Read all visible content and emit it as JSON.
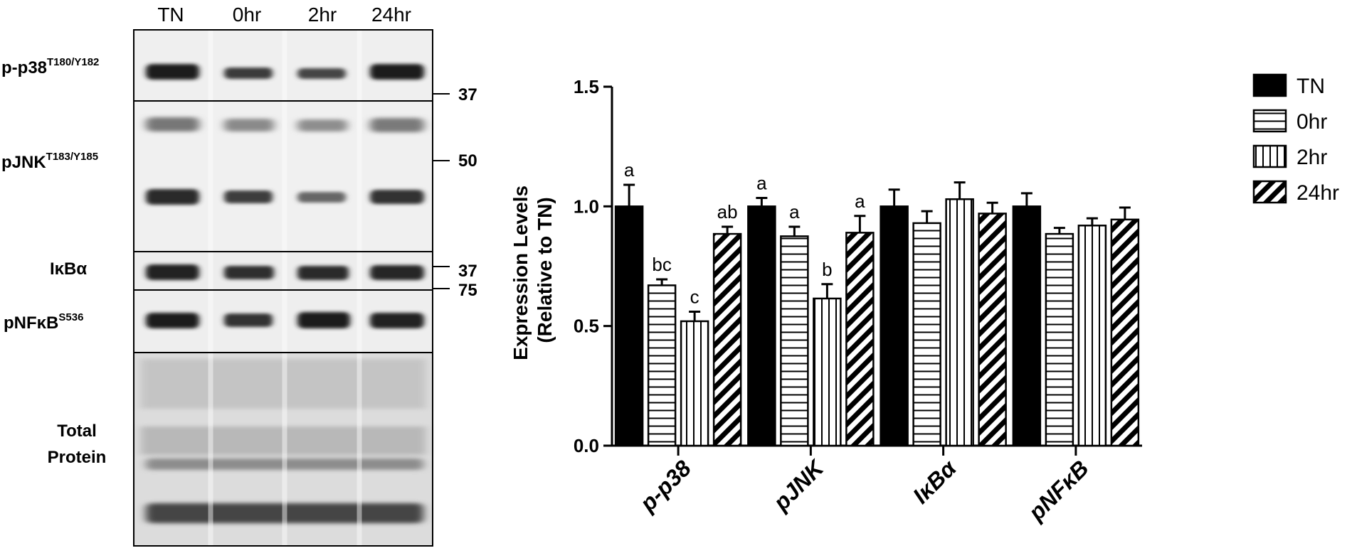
{
  "blot": {
    "lanes": [
      "TN",
      "0hr",
      "2hr",
      "24hr"
    ],
    "rows": [
      {
        "label": "p-p38",
        "sup": "T180/Y182"
      },
      {
        "label": "pJNK",
        "sup": "T183/Y185"
      },
      {
        "label": "IκBα",
        "sup": ""
      },
      {
        "label": "pNFκB",
        "sup": "S536"
      },
      {
        "label_line1": "Total",
        "label_line2": "Protein"
      }
    ],
    "markers": [
      "37",
      "50",
      "37",
      "75"
    ]
  },
  "chart_data": {
    "type": "bar",
    "categories": [
      "p-p38",
      "pJNK",
      "IκBα",
      "pNFκB"
    ],
    "ylabel_line1": "Expression Levels",
    "ylabel_line2": "(Relative to TN)",
    "ylim": [
      0,
      1.5
    ],
    "yticks": [
      "0.0",
      "0.5",
      "1.0",
      "1.5"
    ],
    "legend_position": "right",
    "series": [
      {
        "name": "TN",
        "pattern": "solid",
        "values": [
          1.0,
          1.0,
          1.0,
          1.0
        ],
        "errors": [
          0.09,
          0.035,
          0.07,
          0.055
        ],
        "letters": [
          "a",
          "a",
          "",
          ""
        ]
      },
      {
        "name": "0hr",
        "pattern": "horizontal",
        "values": [
          0.67,
          0.875,
          0.93,
          0.885
        ],
        "errors": [
          0.025,
          0.04,
          0.05,
          0.025
        ],
        "letters": [
          "bc",
          "a",
          "",
          ""
        ]
      },
      {
        "name": "2hr",
        "pattern": "vertical",
        "values": [
          0.52,
          0.615,
          1.03,
          0.92
        ],
        "errors": [
          0.04,
          0.06,
          0.07,
          0.03
        ],
        "letters": [
          "c",
          "b",
          "",
          ""
        ]
      },
      {
        "name": "24hr",
        "pattern": "diagonal",
        "values": [
          0.885,
          0.89,
          0.97,
          0.945
        ],
        "errors": [
          0.03,
          0.07,
          0.045,
          0.05
        ],
        "letters": [
          "ab",
          "a",
          "",
          ""
        ]
      }
    ]
  }
}
